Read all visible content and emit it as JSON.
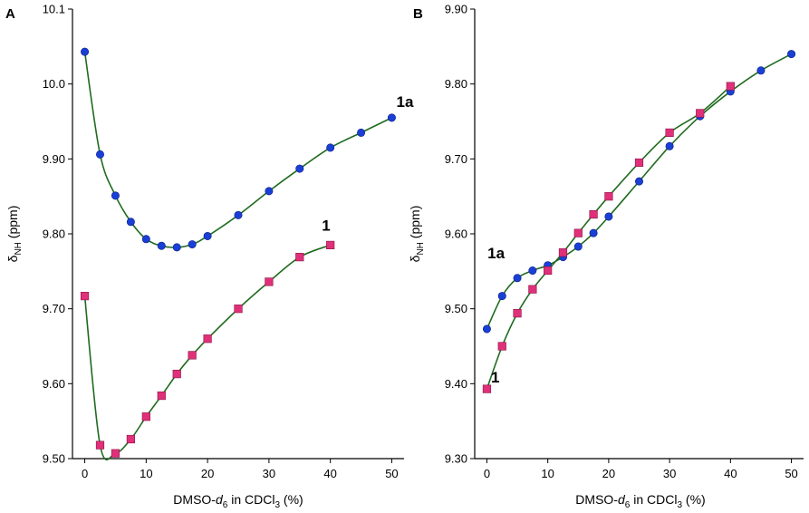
{
  "chart_data": [
    {
      "panel_label": "A",
      "type": "scatter",
      "xlabel": "DMSO-d6 in CDCl3 (%)",
      "ylabel": "δNH (ppm)",
      "xlim": [
        -2,
        52
      ],
      "ylim": [
        9.5,
        10.1
      ],
      "xticks": [
        0,
        10,
        20,
        30,
        40,
        50
      ],
      "yticks": [
        9.5,
        9.6,
        9.7,
        9.8,
        9.9,
        10.0,
        10.1
      ],
      "ytick_labels": [
        "9.50",
        "9.60",
        "9.70",
        "9.80",
        "9.90",
        "10.0",
        "10.1"
      ],
      "series": [
        {
          "name": "1a",
          "marker": "circle",
          "x": [
            0,
            2.5,
            5,
            7.5,
            10,
            12.5,
            15,
            17.5,
            20,
            25,
            30,
            35,
            40,
            45,
            50
          ],
          "y": [
            10.043,
            9.906,
            9.851,
            9.816,
            9.793,
            9.784,
            9.782,
            9.786,
            9.797,
            9.825,
            9.857,
            9.887,
            9.915,
            9.935,
            9.955
          ]
        },
        {
          "name": "1",
          "marker": "square",
          "x": [
            0,
            2.5,
            5,
            7.5,
            10,
            12.5,
            15,
            17.5,
            20,
            25,
            30,
            35,
            40
          ],
          "y": [
            9.717,
            9.518,
            9.507,
            9.526,
            9.556,
            9.584,
            9.613,
            9.638,
            9.66,
            9.7,
            9.736,
            9.769,
            9.785
          ]
        }
      ]
    },
    {
      "panel_label": "B",
      "type": "scatter",
      "xlabel": "DMSO-d6 in CDCl3 (%)",
      "ylabel": "δNH (ppm)",
      "xlim": [
        -2,
        52
      ],
      "ylim": [
        9.3,
        9.9
      ],
      "xticks": [
        0,
        10,
        20,
        30,
        40,
        50
      ],
      "yticks": [
        9.3,
        9.4,
        9.5,
        9.6,
        9.7,
        9.8,
        9.9
      ],
      "ytick_labels": [
        "9.30",
        "9.40",
        "9.50",
        "9.60",
        "9.70",
        "9.80",
        "9.90"
      ],
      "series": [
        {
          "name": "1a",
          "marker": "circle",
          "x": [
            0,
            2.5,
            5,
            7.5,
            10,
            12.5,
            15,
            17.5,
            20,
            25,
            30,
            35,
            40,
            45,
            50
          ],
          "y": [
            9.473,
            9.517,
            9.541,
            9.551,
            9.558,
            9.569,
            9.583,
            9.601,
            9.623,
            9.67,
            9.717,
            9.757,
            9.79,
            9.818,
            9.84
          ]
        },
        {
          "name": "1",
          "marker": "square",
          "x": [
            0,
            2.5,
            5,
            7.5,
            10,
            12.5,
            15,
            17.5,
            20,
            25,
            30,
            35,
            40
          ],
          "y": [
            9.393,
            9.45,
            9.494,
            9.526,
            9.551,
            9.575,
            9.601,
            9.626,
            9.65,
            9.695,
            9.735,
            9.761,
            9.797
          ]
        }
      ]
    }
  ]
}
